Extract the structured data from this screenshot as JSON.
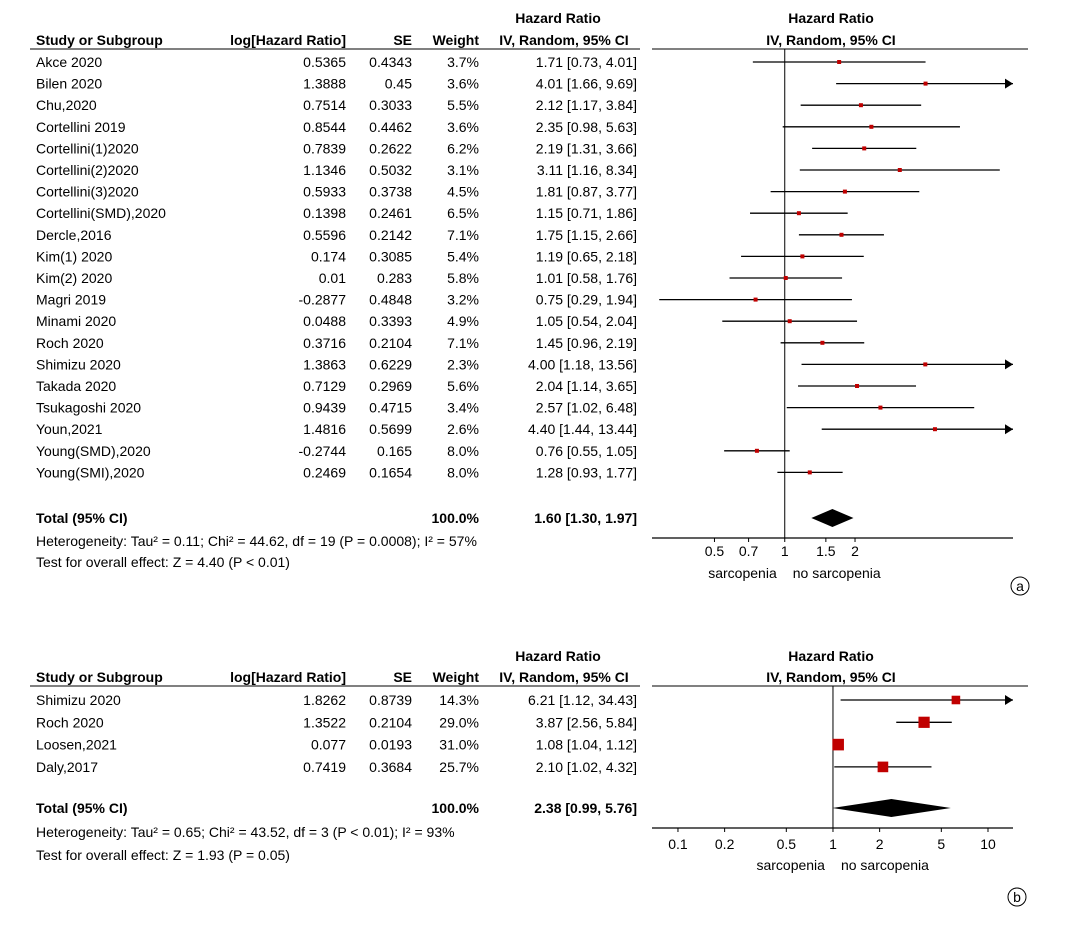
{
  "chart_data": [
    {
      "type": "forest",
      "panel_label": "a",
      "headers": {
        "study": "Study or Subgroup",
        "loghr": "log[Hazard Ratio]",
        "se": "SE",
        "weight": "Weight",
        "hr_top": "Hazard Ratio",
        "hr_sub": "IV, Random, 95% CI",
        "plot_top": "Hazard Ratio",
        "plot_sub": "IV, Random, 95% CI"
      },
      "studies": [
        {
          "name": "Akce 2020",
          "loghr": "0.5365",
          "se": "0.4343",
          "weight": "3.7%",
          "ci_text": "1.71 [0.73, 4.01]",
          "hr": 1.71,
          "lo": 0.73,
          "hi": 4.01
        },
        {
          "name": "Bilen 2020",
          "loghr": "1.3888",
          "se": "0.45",
          "weight": "3.6%",
          "ci_text": "4.01 [1.66, 9.69]",
          "hr": 4.01,
          "lo": 1.66,
          "hi": 9.69
        },
        {
          "name": "Chu,2020",
          "loghr": "0.7514",
          "se": "0.3033",
          "weight": "5.5%",
          "ci_text": "2.12 [1.17, 3.84]",
          "hr": 2.12,
          "lo": 1.17,
          "hi": 3.84
        },
        {
          "name": "Cortellini 2019",
          "loghr": "0.8544",
          "se": "0.4462",
          "weight": "3.6%",
          "ci_text": "2.35 [0.98, 5.63]",
          "hr": 2.35,
          "lo": 0.98,
          "hi": 5.63
        },
        {
          "name": "Cortellini(1)2020",
          "loghr": "0.7839",
          "se": "0.2622",
          "weight": "6.2%",
          "ci_text": "2.19 [1.31, 3.66]",
          "hr": 2.19,
          "lo": 1.31,
          "hi": 3.66
        },
        {
          "name": "Cortellini(2)2020",
          "loghr": "1.1346",
          "se": "0.5032",
          "weight": "3.1%",
          "ci_text": "3.11 [1.16, 8.34]",
          "hr": 3.11,
          "lo": 1.16,
          "hi": 8.34
        },
        {
          "name": "Cortellini(3)2020",
          "loghr": "0.5933",
          "se": "0.3738",
          "weight": "4.5%",
          "ci_text": "1.81 [0.87, 3.77]",
          "hr": 1.81,
          "lo": 0.87,
          "hi": 3.77
        },
        {
          "name": "Cortellini(SMD),2020",
          "loghr": "0.1398",
          "se": "0.2461",
          "weight": "6.5%",
          "ci_text": "1.15 [0.71, 1.86]",
          "hr": 1.15,
          "lo": 0.71,
          "hi": 1.86
        },
        {
          "name": "Dercle,2016",
          "loghr": "0.5596",
          "se": "0.2142",
          "weight": "7.1%",
          "ci_text": "1.75 [1.15, 2.66]",
          "hr": 1.75,
          "lo": 1.15,
          "hi": 2.66
        },
        {
          "name": "Kim(1) 2020",
          "loghr": "0.174",
          "se": "0.3085",
          "weight": "5.4%",
          "ci_text": "1.19 [0.65, 2.18]",
          "hr": 1.19,
          "lo": 0.65,
          "hi": 2.18
        },
        {
          "name": "Kim(2) 2020",
          "loghr": "0.01",
          "se": "0.283",
          "weight": "5.8%",
          "ci_text": "1.01 [0.58, 1.76]",
          "hr": 1.01,
          "lo": 0.58,
          "hi": 1.76
        },
        {
          "name": "Magri 2019",
          "loghr": "-0.2877",
          "se": "0.4848",
          "weight": "3.2%",
          "ci_text": "0.75 [0.29, 1.94]",
          "hr": 0.75,
          "lo": 0.29,
          "hi": 1.94
        },
        {
          "name": "Minami 2020",
          "loghr": "0.0488",
          "se": "0.3393",
          "weight": "4.9%",
          "ci_text": "1.05 [0.54, 2.04]",
          "hr": 1.05,
          "lo": 0.54,
          "hi": 2.04
        },
        {
          "name": "Roch 2020",
          "loghr": "0.3716",
          "se": "0.2104",
          "weight": "7.1%",
          "ci_text": "1.45 [0.96, 2.19]",
          "hr": 1.45,
          "lo": 0.96,
          "hi": 2.19
        },
        {
          "name": "Shimizu 2020",
          "loghr": "1.3863",
          "se": "0.6229",
          "weight": "2.3%",
          "ci_text": "4.00 [1.18, 13.56]",
          "hr": 4.0,
          "lo": 1.18,
          "hi": 13.56
        },
        {
          "name": "Takada 2020",
          "loghr": "0.7129",
          "se": "0.2969",
          "weight": "5.6%",
          "ci_text": "2.04 [1.14, 3.65]",
          "hr": 2.04,
          "lo": 1.14,
          "hi": 3.65
        },
        {
          "name": "Tsukagoshi 2020",
          "loghr": "0.9439",
          "se": "0.4715",
          "weight": "3.4%",
          "ci_text": "2.57 [1.02, 6.48]",
          "hr": 2.57,
          "lo": 1.02,
          "hi": 6.48
        },
        {
          "name": "Youn,2021",
          "loghr": "1.4816",
          "se": "0.5699",
          "weight": "2.6%",
          "ci_text": "4.40 [1.44, 13.44]",
          "hr": 4.4,
          "lo": 1.44,
          "hi": 13.44
        },
        {
          "name": "Young(SMD),2020",
          "loghr": "-0.2744",
          "se": "0.165",
          "weight": "8.0%",
          "ci_text": "0.76 [0.55, 1.05]",
          "hr": 0.76,
          "lo": 0.55,
          "hi": 1.05
        },
        {
          "name": "Young(SMI),2020",
          "loghr": "0.2469",
          "se": "0.1654",
          "weight": "8.0%",
          "ci_text": "1.28 [0.93, 1.77]",
          "hr": 1.28,
          "lo": 0.93,
          "hi": 1.77
        }
      ],
      "total": {
        "label": "Total (95% CI)",
        "weight": "100.0%",
        "ci_text": "1.60 [1.30, 1.97]",
        "hr": 1.6,
        "lo": 1.3,
        "hi": 1.97
      },
      "heterogeneity": "Heterogeneity: Tau² = 0.11; Chi² = 44.62, df = 19 (P = 0.0008); I² = 57%",
      "overall_effect": "Test for overall effect: Z = 4.40 (P < 0.01)",
      "axis": {
        "scale": "log",
        "range": [
          0.27,
          9.5
        ],
        "ticks": [
          0.5,
          0.7,
          1,
          1.5,
          2
        ],
        "tick_labels": [
          "0.5",
          "0.7",
          "1",
          "1.5",
          "2"
        ]
      },
      "favours_left": "sarcopenia",
      "favours_right": "no sarcopenia"
    },
    {
      "type": "forest",
      "panel_label": "b",
      "headers": {
        "study": "Study or Subgroup",
        "loghr": "log[Hazard Ratio]",
        "se": "SE",
        "weight": "Weight",
        "hr_top": "Hazard Ratio",
        "hr_sub": "IV, Random, 95% CI",
        "plot_top": "Hazard Ratio",
        "plot_sub": "IV, Random, 95% CI"
      },
      "studies": [
        {
          "name": "Shimizu 2020",
          "loghr": "1.8262",
          "se": "0.8739",
          "weight": "14.3%",
          "ci_text": "6.21 [1.12, 34.43]",
          "hr": 6.21,
          "lo": 1.12,
          "hi": 34.43
        },
        {
          "name": "Roch 2020",
          "loghr": "1.3522",
          "se": "0.2104",
          "weight": "29.0%",
          "ci_text": "3.87 [2.56, 5.84]",
          "hr": 3.87,
          "lo": 2.56,
          "hi": 5.84
        },
        {
          "name": "Loosen,2021",
          "loghr": "0.077",
          "se": "0.0193",
          "weight": "31.0%",
          "ci_text": "1.08 [1.04, 1.12]",
          "hr": 1.08,
          "lo": 1.04,
          "hi": 1.12
        },
        {
          "name": "Daly,2017",
          "loghr": "0.7419",
          "se": "0.3684",
          "weight": "25.7%",
          "ci_text": "2.10 [1.02, 4.32]",
          "hr": 2.1,
          "lo": 1.02,
          "hi": 4.32
        }
      ],
      "total": {
        "label": "Total (95% CI)",
        "weight": "100.0%",
        "ci_text": "2.38 [0.99, 5.76]",
        "hr": 2.38,
        "lo": 0.99,
        "hi": 5.76
      },
      "heterogeneity": "Heterogeneity: Tau² = 0.65; Chi² = 43.52, df = 3 (P < 0.01); I² = 93%",
      "overall_effect": "Test for overall effect: Z = 1.93 (P = 0.05)",
      "axis": {
        "scale": "log",
        "range": [
          0.068,
          14.5
        ],
        "ticks": [
          0.1,
          0.2,
          0.5,
          1,
          2,
          5,
          10
        ],
        "tick_labels": [
          "0.1",
          "0.2",
          "0.5",
          "1",
          "2",
          "5",
          "10"
        ]
      },
      "favours_left": "sarcopenia",
      "favours_right": "no sarcopenia"
    }
  ],
  "colors": {
    "marker": "#c00000",
    "line": "#000000"
  }
}
